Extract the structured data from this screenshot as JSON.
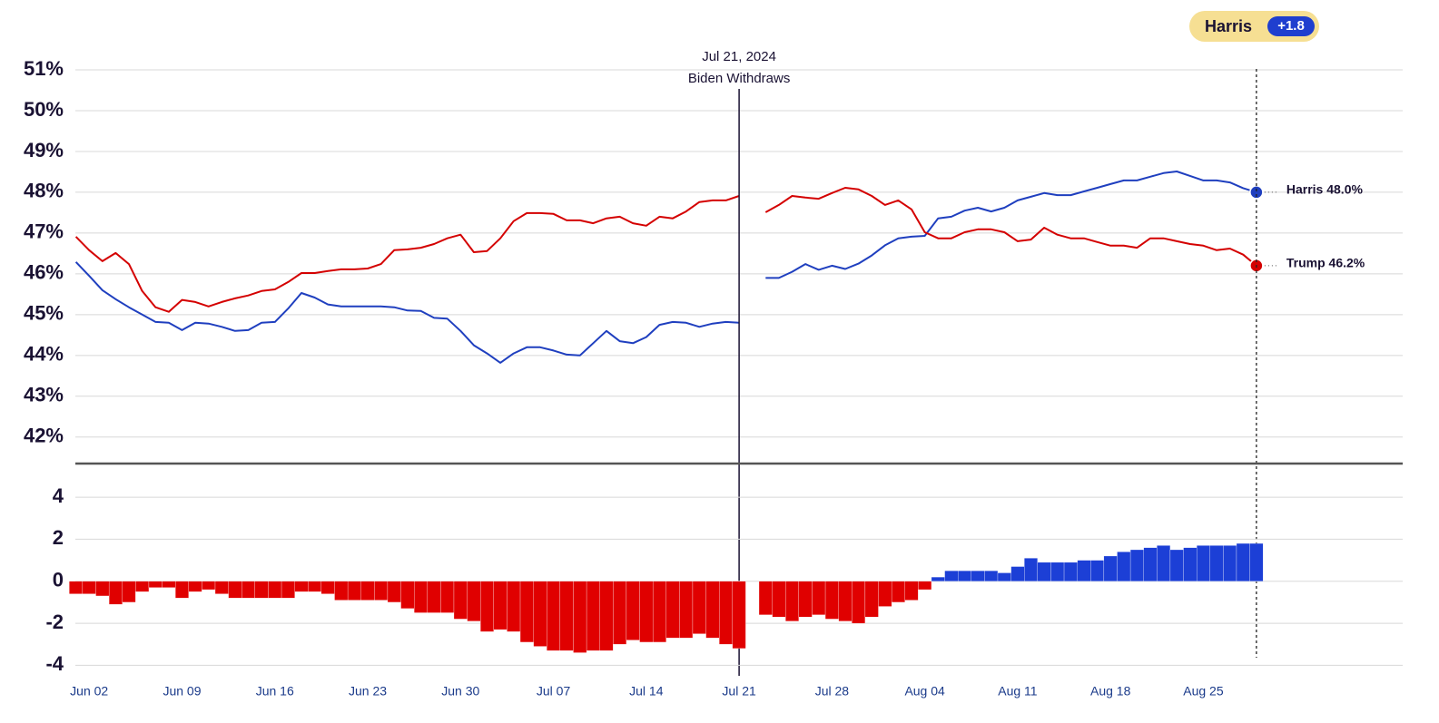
{
  "chart_data": [
    {
      "type": "line",
      "ylim": [
        41.35,
        51.4
      ],
      "yticks": [
        {
          "value": 42,
          "label": "42%"
        },
        {
          "value": 43,
          "label": "43%"
        },
        {
          "value": 44,
          "label": "44%"
        },
        {
          "value": 45,
          "label": "45%"
        },
        {
          "value": 46,
          "label": "46%"
        },
        {
          "value": 47,
          "label": "47%"
        },
        {
          "value": 48,
          "label": "48%"
        },
        {
          "value": 49,
          "label": "49%"
        },
        {
          "value": 50,
          "label": "50%"
        },
        {
          "value": 51,
          "label": "51%"
        }
      ],
      "grid": true,
      "annotation": {
        "date": "Jul 21, 2024",
        "label": "Biden Withdraws"
      },
      "leader": {
        "name": "Harris",
        "margin": 1.8,
        "margin_label": "+1.8",
        "color": "#f6df93",
        "badge_color": "#1f3fcf"
      },
      "series": [
        {
          "name": "Harris",
          "color": "#1f3fbf",
          "end_label": "Harris 48.0%",
          "values": [
            46.29,
            45.95,
            45.6,
            45.38,
            45.18,
            45.0,
            44.82,
            44.8,
            44.62,
            44.8,
            44.78,
            44.7,
            44.6,
            44.62,
            44.8,
            44.82,
            45.15,
            45.53,
            45.42,
            45.25,
            45.2,
            45.2,
            45.2,
            45.2,
            45.18,
            45.1,
            45.09,
            44.92,
            44.9,
            44.6,
            44.25,
            44.05,
            43.82,
            44.05,
            44.2,
            44.2,
            44.12,
            44.02,
            44.0,
            44.3,
            44.6,
            44.35,
            44.3,
            44.45,
            44.75,
            44.82,
            44.8,
            44.7,
            44.78,
            44.82,
            44.8,
            null,
            45.9,
            45.9,
            46.05,
            46.24,
            46.1,
            46.2,
            46.12,
            46.25,
            46.45,
            46.7,
            46.87,
            46.91,
            46.93,
            47.36,
            47.4,
            47.55,
            47.62,
            47.53,
            47.62,
            47.8,
            47.89,
            47.98,
            47.93,
            47.93,
            48.02,
            48.11,
            48.2,
            48.29,
            48.29,
            48.38,
            48.47,
            48.51,
            48.4,
            48.29,
            48.29,
            48.24,
            48.1,
            48.0
          ]
        },
        {
          "name": "Trump",
          "color": "#d40000",
          "end_label": "Trump 46.2%",
          "values": [
            46.91,
            46.58,
            46.31,
            46.51,
            46.24,
            45.58,
            45.18,
            45.07,
            45.36,
            45.31,
            45.2,
            45.31,
            45.4,
            45.47,
            45.58,
            45.62,
            45.8,
            46.02,
            46.02,
            46.07,
            46.11,
            46.11,
            46.13,
            46.24,
            46.58,
            46.6,
            46.64,
            46.73,
            46.87,
            46.96,
            46.53,
            46.56,
            46.87,
            47.29,
            47.49,
            47.49,
            47.47,
            47.31,
            47.31,
            47.24,
            47.36,
            47.4,
            47.24,
            47.18,
            47.4,
            47.36,
            47.53,
            47.76,
            47.8,
            47.8,
            47.91,
            null,
            47.51,
            47.69,
            47.91,
            47.87,
            47.84,
            47.98,
            48.11,
            48.07,
            47.91,
            47.69,
            47.8,
            47.58,
            47.02,
            46.87,
            46.87,
            47.02,
            47.09,
            47.09,
            47.02,
            46.8,
            46.84,
            47.13,
            46.96,
            46.87,
            46.87,
            46.78,
            46.69,
            46.69,
            46.64,
            46.87,
            46.87,
            46.8,
            46.73,
            46.69,
            46.58,
            46.62,
            46.47,
            46.2
          ]
        }
      ]
    },
    {
      "type": "bar",
      "ylim": [
        -4.5,
        5.6
      ],
      "yticks": [
        4,
        2,
        0,
        -2,
        -4
      ],
      "grid": true,
      "positive_color": "#1c3fd6",
      "negative_color": "#e00000",
      "categories": [
        null,
        "Jun 02",
        null,
        null,
        null,
        null,
        null,
        null,
        "Jun 09",
        null,
        null,
        null,
        null,
        null,
        null,
        "Jun 16",
        null,
        null,
        null,
        null,
        null,
        null,
        "Jun 23",
        null,
        null,
        null,
        null,
        null,
        null,
        "Jun 30",
        null,
        null,
        null,
        null,
        null,
        null,
        "Jul 07",
        null,
        null,
        null,
        null,
        null,
        null,
        "Jul 14",
        null,
        null,
        null,
        null,
        null,
        null,
        "Jul 21",
        null,
        null,
        null,
        null,
        null,
        null,
        "Jul 28",
        null,
        null,
        null,
        null,
        null,
        null,
        "Aug 04",
        null,
        null,
        null,
        null,
        null,
        null,
        "Aug 11",
        null,
        null,
        null,
        null,
        null,
        null,
        "Aug 18",
        null,
        null,
        null,
        null,
        null,
        null,
        "Aug 25",
        null,
        null,
        null,
        null
      ],
      "values": [
        -0.6,
        -0.6,
        -0.7,
        -1.1,
        -1.0,
        -0.5,
        -0.3,
        -0.3,
        -0.8,
        -0.5,
        -0.4,
        -0.6,
        -0.8,
        -0.8,
        -0.8,
        -0.8,
        -0.8,
        -0.5,
        -0.5,
        -0.6,
        -0.9,
        -0.9,
        -0.9,
        -0.9,
        -1.0,
        -1.3,
        -1.5,
        -1.5,
        -1.5,
        -1.8,
        -1.9,
        -2.4,
        -2.3,
        -2.4,
        -2.9,
        -3.1,
        -3.3,
        -3.3,
        -3.4,
        -3.3,
        -3.3,
        -3.0,
        -2.8,
        -2.9,
        -2.9,
        -2.7,
        -2.7,
        -2.5,
        -2.7,
        -3.0,
        -3.2,
        null,
        -1.6,
        -1.7,
        -1.9,
        -1.7,
        -1.6,
        -1.8,
        -1.9,
        -2.0,
        -1.7,
        -1.2,
        -1.0,
        -0.9,
        -0.4,
        0.2,
        0.5,
        0.5,
        0.5,
        0.5,
        0.4,
        0.7,
        1.1,
        0.9,
        0.9,
        0.9,
        1.0,
        1.0,
        1.2,
        1.4,
        1.5,
        1.6,
        1.7,
        1.5,
        1.6,
        1.7,
        1.7,
        1.7,
        1.8,
        1.8
      ]
    }
  ]
}
